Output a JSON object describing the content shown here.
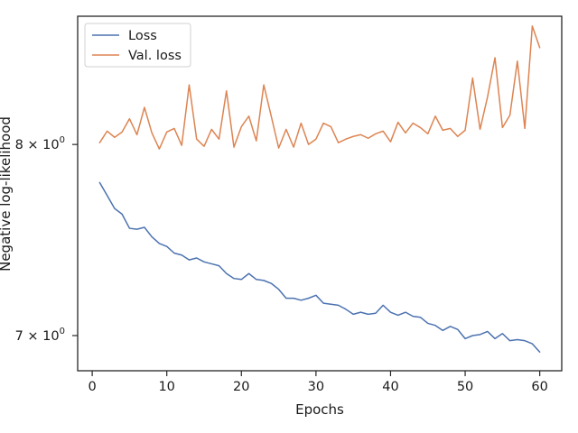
{
  "chart_data": {
    "type": "line",
    "title": "",
    "xlabel": "Epochs",
    "ylabel": "Negative log-likelihood",
    "yscale": "log",
    "xlim": [
      -1.95,
      62.95
    ],
    "ylim": [
      6.83,
      8.75
    ],
    "grid": false,
    "legend_position": "top-left",
    "x_ticks": [
      {
        "value": 0,
        "label": "0"
      },
      {
        "value": 10,
        "label": "10"
      },
      {
        "value": 20,
        "label": "20"
      },
      {
        "value": 30,
        "label": "30"
      },
      {
        "value": 40,
        "label": "40"
      },
      {
        "value": 50,
        "label": "50"
      },
      {
        "value": 60,
        "label": "60"
      }
    ],
    "y_ticks": [
      {
        "value": 7,
        "label_base": "7 × 10",
        "label_exp": "0"
      },
      {
        "value": 8,
        "label_base": "8 × 10",
        "label_exp": "0"
      }
    ],
    "x": [
      1,
      2,
      3,
      4,
      5,
      6,
      7,
      8,
      9,
      10,
      11,
      12,
      13,
      14,
      15,
      16,
      17,
      18,
      19,
      20,
      21,
      22,
      23,
      24,
      25,
      26,
      27,
      28,
      29,
      30,
      31,
      32,
      33,
      34,
      35,
      36,
      37,
      38,
      39,
      40,
      41,
      42,
      43,
      44,
      45,
      46,
      47,
      48,
      49,
      50,
      51,
      52,
      53,
      54,
      55,
      56,
      57,
      58,
      59,
      60
    ],
    "series": [
      {
        "name": "Loss",
        "color": "#4c72b0",
        "values": [
          7.79,
          7.72,
          7.65,
          7.62,
          7.545,
          7.54,
          7.55,
          7.5,
          7.465,
          7.45,
          7.415,
          7.405,
          7.38,
          7.39,
          7.37,
          7.36,
          7.35,
          7.31,
          7.285,
          7.28,
          7.31,
          7.28,
          7.275,
          7.26,
          7.23,
          7.185,
          7.185,
          7.175,
          7.185,
          7.2,
          7.16,
          7.155,
          7.15,
          7.13,
          7.105,
          7.115,
          7.105,
          7.11,
          7.15,
          7.115,
          7.1,
          7.115,
          7.095,
          7.09,
          7.06,
          7.05,
          7.025,
          7.045,
          7.03,
          6.985,
          7.0,
          7.005,
          7.02,
          6.985,
          7.01,
          6.975,
          6.98,
          6.975,
          6.96,
          6.92
        ]
      },
      {
        "name": "Val. loss",
        "color": "#dd8452",
        "values": [
          8.01,
          8.075,
          8.04,
          8.07,
          8.145,
          8.055,
          8.21,
          8.065,
          7.975,
          8.07,
          8.09,
          7.995,
          8.34,
          8.03,
          7.99,
          8.085,
          8.03,
          8.305,
          7.985,
          8.1,
          8.16,
          8.02,
          8.34,
          8.16,
          7.98,
          8.085,
          7.985,
          8.12,
          8.0,
          8.03,
          8.12,
          8.1,
          8.01,
          8.03,
          8.045,
          8.055,
          8.035,
          8.06,
          8.075,
          8.015,
          8.125,
          8.065,
          8.12,
          8.095,
          8.06,
          8.16,
          8.08,
          8.09,
          8.045,
          8.08,
          8.38,
          8.085,
          8.27,
          8.5,
          8.095,
          8.165,
          8.48,
          8.09,
          8.69,
          8.56
        ]
      }
    ]
  }
}
